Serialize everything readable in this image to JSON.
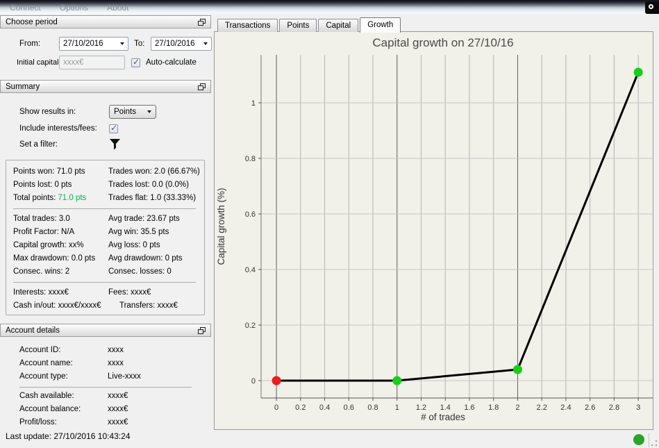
{
  "menu": {
    "items": [
      "Connect",
      "Options",
      "About"
    ]
  },
  "tabs": [
    "Transactions",
    "Points",
    "Capital",
    "Growth"
  ],
  "active_tab": "Growth",
  "panels": {
    "choose_period": {
      "title": "Choose period",
      "from_label": "From:",
      "from_value": "27/10/2016",
      "to_label": "To:",
      "to_value": "27/10/2016",
      "initial_capital_label": "Initial capital:",
      "initial_capital_value": "xxxx€",
      "auto_calculate_label": "Auto-calculate"
    },
    "summary": {
      "title": "Summary",
      "show_results_label": "Show results in:",
      "show_results_value": "Points",
      "include_label": "Include interests/fees:",
      "filter_label": "Set a filter:",
      "stats_groups": [
        [
          {
            "l": "Points won: 71.0 pts",
            "r": "Trades won: 2.0 (66.67%)"
          },
          {
            "l": "Points lost: 0 pts",
            "r": "Trades lost: 0.0 (0.0%)"
          },
          {
            "l_label": "Total points:",
            "l_value": "71.0 pts",
            "r": "Trades flat: 1.0 (33.33%)"
          }
        ],
        [
          {
            "l": "Total trades: 3.0",
            "r": "Avg trade: 23.67 pts"
          },
          {
            "l": "Profit Factor: N/A",
            "r": "Avg win: 35.5 pts"
          },
          {
            "l": "Capital growth: xx%",
            "r": "Avg loss: 0 pts"
          },
          {
            "l": "Max drawdown: 0.0 pts",
            "r": "Avg drawdown: 0 pts"
          },
          {
            "l": "Consec. wins: 2",
            "r": "Consec. losses: 0"
          }
        ],
        [
          {
            "l": "Interests: xxxx€",
            "r": "Fees: xxxx€"
          },
          {
            "l": "Cash in/out: xxxx€/xxxx€",
            "r": "Transfers: xxxx€"
          }
        ]
      ]
    },
    "account": {
      "title": "Account details",
      "rows": [
        {
          "label": "Account ID:",
          "value": "xxxx"
        },
        {
          "label": "Account name:",
          "value": "xxxx"
        },
        {
          "label": "Account type:",
          "value": "Live-xxxx"
        },
        {
          "label": "Cash available:",
          "value": "xxxx€"
        },
        {
          "label": "Account balance:",
          "value": "xxxx€"
        },
        {
          "label": "Profit/loss:",
          "value": "xxxx€"
        }
      ]
    },
    "last_update": "Last update: 27/10/2016 10:43:24"
  },
  "colors": {
    "green_value": "#00b050",
    "status_green": "#2aa52a",
    "point_red": "#ee1c1c",
    "point_green": "#17cf17",
    "chart_bg": "#f1f0e9"
  },
  "chart_data": {
    "type": "line",
    "title": "Capital growth on 27/10/16",
    "xlabel": "# of trades",
    "ylabel": "Capital growth (%)",
    "x": [
      0,
      1,
      2,
      3
    ],
    "y": [
      0,
      0,
      0.04,
      1.11
    ],
    "point_colors": [
      "#ee1c1c",
      "#17cf17",
      "#17cf17",
      "#17cf17"
    ],
    "line_color": "#000000",
    "xlim": [
      -0.127,
      3.12
    ],
    "ylim": [
      -0.0625,
      1.1725
    ],
    "xticks": [
      0,
      0.2,
      0.4,
      0.6,
      0.8,
      1,
      1.2,
      1.4,
      1.6,
      1.8,
      2,
      2.2,
      2.4,
      2.6,
      2.8,
      3
    ],
    "xtick_labels": [
      "0",
      "0.2",
      "0.4",
      "0.6",
      "0.8",
      "1",
      "1.2",
      "1.4",
      "1.6",
      "1.8",
      "2",
      "2.2",
      "2.4",
      "2.6",
      "2.8",
      "3"
    ],
    "yticks": [
      0,
      0.2,
      0.4,
      0.6,
      0.8,
      1
    ],
    "ytick_labels": [
      "0",
      "0.2",
      "0.4",
      "0.6",
      "0.8",
      "1"
    ],
    "dark_vlines": [
      0,
      1,
      2
    ],
    "grid": true,
    "legend": "none"
  }
}
